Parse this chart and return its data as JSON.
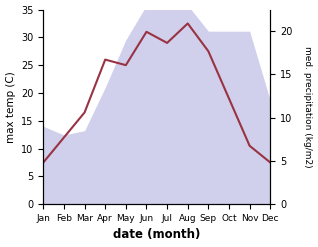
{
  "months": [
    "Jan",
    "Feb",
    "Mar",
    "Apr",
    "May",
    "Jun",
    "Jul",
    "Aug",
    "Sep",
    "Oct",
    "Nov",
    "Dec"
  ],
  "temperature": [
    7.5,
    12.0,
    16.5,
    26.0,
    25.0,
    31.0,
    29.0,
    32.5,
    27.5,
    19.0,
    10.5,
    7.5
  ],
  "precipitation_mm": [
    9,
    8,
    8.5,
    13.5,
    19,
    23,
    23,
    23,
    20,
    20,
    20,
    12
  ],
  "temp_color": "#993344",
  "precip_color": "#aaaadd",
  "precip_fill_alpha": 0.55,
  "xlabel": "date (month)",
  "ylabel_left": "max temp (C)",
  "ylabel_right": "med. precipitation (kg/m2)",
  "ylim_left": [
    0,
    35
  ],
  "ylim_right": [
    0,
    22.5
  ],
  "yticks_left": [
    0,
    5,
    10,
    15,
    20,
    25,
    30,
    35
  ],
  "yticks_right": [
    0,
    5,
    10,
    15,
    20
  ],
  "figsize": [
    3.18,
    2.47
  ],
  "dpi": 100
}
